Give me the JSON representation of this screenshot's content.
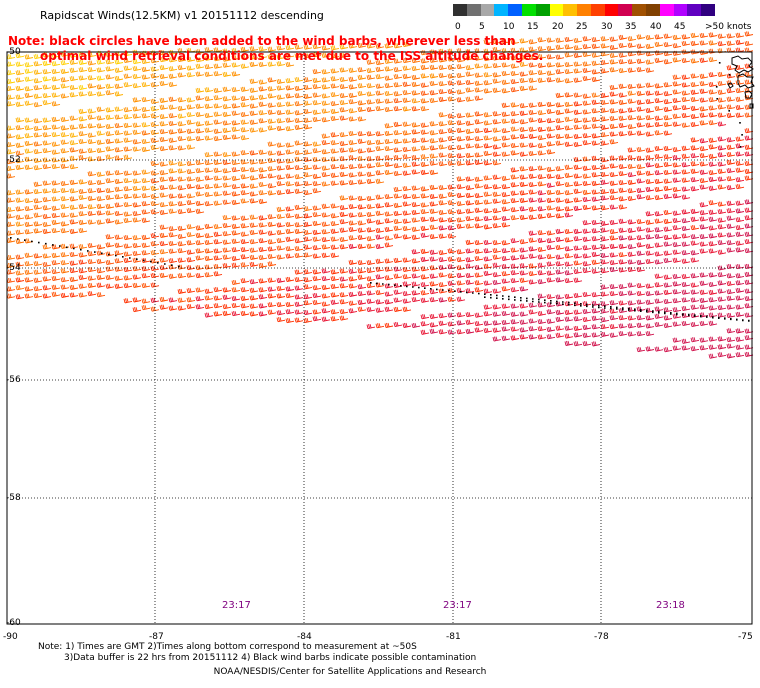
{
  "title": "Rapidscat Winds(12.5KM) v1 20151112 descending",
  "note": {
    "line1": "Note: black circles have been added to the wind barbs, wherever less than",
    "line2": "optimal wind retrieval conditions are met due to the ISS altitude changes."
  },
  "legend": {
    "labels": [
      "0",
      "5",
      "10",
      "15",
      "20",
      "25",
      "30",
      "35",
      "40",
      "45",
      ">50 knots"
    ],
    "colors": [
      "#303030",
      "#707070",
      "#a8a8a8",
      "#00b4ff",
      "#0060ff",
      "#00e000",
      "#00a000",
      "#ffff00",
      "#ffc000",
      "#ff8000",
      "#ff4000",
      "#ff0000",
      "#d00050",
      "#a05000",
      "#804000",
      "#ff00ff",
      "#b000ff",
      "#6000c0",
      "#300080"
    ]
  },
  "axes": {
    "lat_labels": [
      "-50",
      "-52",
      "-54",
      "-56",
      "-58",
      "-60"
    ],
    "lon_labels": [
      "-90",
      "-87",
      "-84",
      "-81",
      "-78",
      "-75"
    ]
  },
  "times": [
    "23:17",
    "23:17",
    "23:18"
  ],
  "footnotes": {
    "line1": "Note: 1) Times are GMT 2)Times along bottom correspond to measurement at ~50S",
    "line2": "3)Data buffer is 22 hrs from 20151112 4) Black wind barbs indicate possible contamination"
  },
  "credit": "NOAA/NESDIS/Center for Satellite Applications and Research"
}
